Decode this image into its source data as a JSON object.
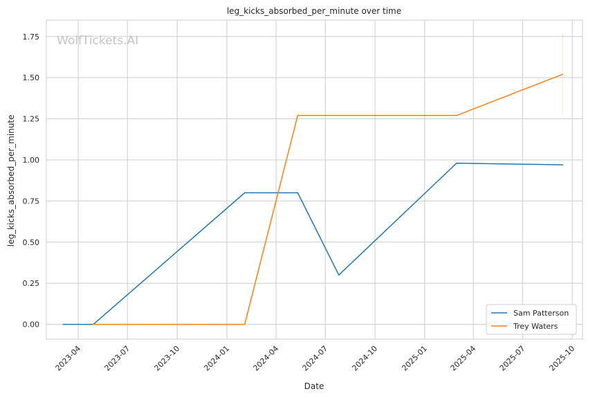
{
  "chart_data": {
    "type": "line",
    "title": "leg_kicks_absorbed_per_minute over time",
    "xlabel": "Date",
    "ylabel": "leg_kicks_absorbed_per_minute",
    "watermark": "WolfTickets.AI",
    "grid": true,
    "legend_position": "bottom-right",
    "xlim": [
      "2023-02-01",
      "2025-10-20"
    ],
    "ylim": [
      -0.09,
      1.85
    ],
    "x_ticks": [
      "2023-04",
      "2023-07",
      "2023-10",
      "2024-01",
      "2024-04",
      "2024-07",
      "2024-10",
      "2025-01",
      "2025-04",
      "2025-07",
      "2025-10"
    ],
    "y_ticks": [
      "0.00",
      "0.25",
      "0.50",
      "0.75",
      "1.00",
      "1.25",
      "1.50",
      "1.75"
    ],
    "series": [
      {
        "name": "Sam Patterson",
        "color": "#1f77b4",
        "points": [
          {
            "x": "2023-03-04",
            "y": 0.0
          },
          {
            "x": "2023-04-29",
            "y": 0.0
          },
          {
            "x": "2024-02-03",
            "y": 0.8
          },
          {
            "x": "2024-05-11",
            "y": 0.8
          },
          {
            "x": "2024-07-26",
            "y": 0.3
          },
          {
            "x": "2025-03-01",
            "y": 0.98
          },
          {
            "x": "2025-09-13",
            "y": 0.97
          }
        ]
      },
      {
        "name": "Trey Waters",
        "color": "#ff7f0e",
        "points": [
          {
            "x": "2023-04-29",
            "y": 0.0
          },
          {
            "x": "2024-02-03",
            "y": 0.0
          },
          {
            "x": "2024-05-11",
            "y": 1.27
          },
          {
            "x": "2025-03-01",
            "y": 1.27
          },
          {
            "x": "2025-09-13",
            "y": 1.52
          }
        ],
        "error_bar": {
          "x": "2025-09-13",
          "low": 1.27,
          "high": 1.77
        }
      }
    ]
  }
}
